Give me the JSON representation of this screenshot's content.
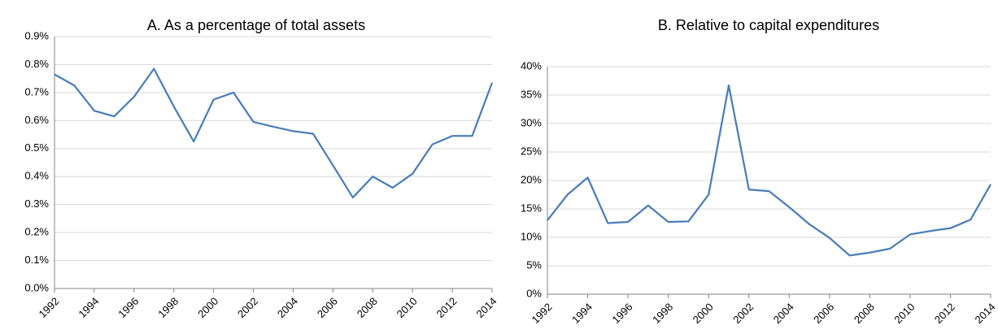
{
  "chart_data": [
    {
      "type": "line",
      "title": "A. As a percentage of total assets",
      "x": [
        1992,
        1993,
        1994,
        1995,
        1996,
        1997,
        1998,
        1999,
        2000,
        2001,
        2002,
        2003,
        2004,
        2005,
        2006,
        2007,
        2008,
        2009,
        2010,
        2011,
        2012,
        2013,
        2014
      ],
      "series": [
        {
          "color": "#4a7ebb",
          "values": [
            0.765,
            0.725,
            0.635,
            0.615,
            0.685,
            0.785,
            0.65,
            0.525,
            0.675,
            0.7,
            0.595,
            0.578,
            0.562,
            0.553,
            0.44,
            0.325,
            0.4,
            0.36,
            0.41,
            0.515,
            0.545,
            0.545,
            0.735
          ]
        }
      ],
      "xlim": [
        1992,
        2014
      ],
      "xticks": [
        1992,
        1994,
        1996,
        1998,
        2000,
        2002,
        2004,
        2006,
        2008,
        2010,
        2012,
        2014
      ],
      "ylim": [
        0,
        0.9
      ],
      "yticks": [
        {
          "value": 0,
          "label": "0.0%"
        },
        {
          "value": 0.1,
          "label": "0.1%"
        },
        {
          "value": 0.2,
          "label": "0.2%"
        },
        {
          "value": 0.3,
          "label": "0.3%"
        },
        {
          "value": 0.4,
          "label": "0.4%"
        },
        {
          "value": 0.5,
          "label": "0.5%"
        },
        {
          "value": 0.6,
          "label": "0.6%"
        },
        {
          "value": 0.7,
          "label": "0.7%"
        },
        {
          "value": 0.8,
          "label": "0.8%"
        },
        {
          "value": 0.9,
          "label": "0.9%"
        }
      ],
      "grid": true
    },
    {
      "type": "line",
      "title": "B. Relative to capital expenditures",
      "x": [
        1992,
        1993,
        1994,
        1995,
        1996,
        1997,
        1998,
        1999,
        2000,
        2001,
        2002,
        2003,
        2004,
        2005,
        2006,
        2007,
        2008,
        2009,
        2010,
        2011,
        2012,
        2013,
        2014
      ],
      "series": [
        {
          "color": "#4a7ebb",
          "values": [
            13,
            17.5,
            20.5,
            12.5,
            12.7,
            15.6,
            12.7,
            12.8,
            17.5,
            36.7,
            18.4,
            18.1,
            15.3,
            12.3,
            9.9,
            6.8,
            7.3,
            8.0,
            10.5,
            11.1,
            11.6,
            13.1,
            19.3
          ]
        }
      ],
      "xlim": [
        1992,
        2014
      ],
      "xticks": [
        1992,
        1994,
        1996,
        1998,
        2000,
        2002,
        2004,
        2006,
        2008,
        2010,
        2012,
        2014
      ],
      "ylim": [
        0,
        40
      ],
      "yticks": [
        {
          "value": 0,
          "label": "0%"
        },
        {
          "value": 5,
          "label": "5%"
        },
        {
          "value": 10,
          "label": "10%"
        },
        {
          "value": 15,
          "label": "15%"
        },
        {
          "value": 20,
          "label": "20%"
        },
        {
          "value": 25,
          "label": "25%"
        },
        {
          "value": 30,
          "label": "30%"
        },
        {
          "value": 35,
          "label": "35%"
        },
        {
          "value": 40,
          "label": "40%"
        }
      ],
      "grid": true
    }
  ]
}
